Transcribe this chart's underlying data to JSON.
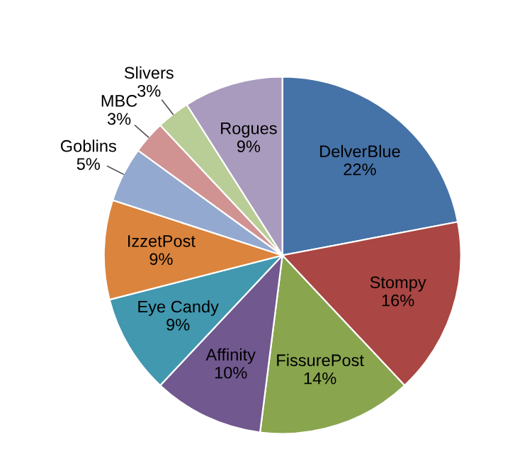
{
  "chart_data": {
    "type": "pie",
    "categories": [
      "DelverBlue",
      "Stompy",
      "FissurePost",
      "Affinity",
      "Eye Candy",
      "IzzetPost",
      "Goblins",
      "MBC",
      "Slivers",
      "Rogues"
    ],
    "values": [
      22,
      16,
      14,
      10,
      9,
      9,
      5,
      3,
      3,
      9
    ],
    "colors": [
      "#4572a7",
      "#aa4643",
      "#89a54e",
      "#71588f",
      "#4198af",
      "#db843d",
      "#93a9cf",
      "#d19392",
      "#b9cd96",
      "#a99bbd"
    ],
    "value_labels": [
      "22%",
      "16%",
      "14%",
      "10%",
      "9%",
      "9%",
      "5%",
      "3%",
      "3%",
      "9%"
    ],
    "legend": false
  }
}
